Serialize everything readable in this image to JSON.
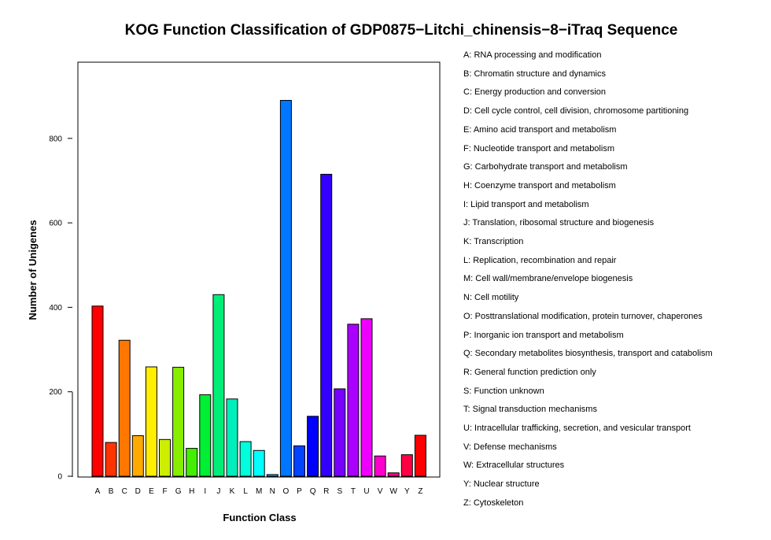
{
  "chart_data": {
    "type": "bar",
    "title": "KOG Function Classification of GDP0875−Litchi_chinensis−8−iTraq Sequence",
    "xlabel": "Function Class",
    "ylabel": "Number of Unigenes",
    "ylim": [
      0,
      900
    ],
    "yticks": [
      "0",
      "200",
      "400",
      "600",
      "800"
    ],
    "categories": [
      "A",
      "B",
      "C",
      "D",
      "E",
      "F",
      "G",
      "H",
      "I",
      "J",
      "K",
      "L",
      "M",
      "N",
      "O",
      "P",
      "Q",
      "R",
      "S",
      "T",
      "U",
      "V",
      "W",
      "Y",
      "Z"
    ],
    "values": [
      403,
      80,
      322,
      96,
      259,
      87,
      258,
      66,
      193,
      430,
      183,
      82,
      61,
      4,
      890,
      72,
      142,
      715,
      207,
      360,
      373,
      48,
      8,
      51,
      97
    ],
    "colors": [
      "#ff0000",
      "#ff3300",
      "#ff7700",
      "#ffaa00",
      "#ffee00",
      "#ccee00",
      "#88ee00",
      "#44ee00",
      "#00ee33",
      "#00ee77",
      "#00eebb",
      "#00ffdd",
      "#00ffff",
      "#00bbff",
      "#0077ff",
      "#0044ff",
      "#0000ff",
      "#3300ff",
      "#7700ff",
      "#aa00ff",
      "#ee00ff",
      "#ff00cc",
      "#ff0088",
      "#ff0044",
      "#ff0000"
    ],
    "grid": false,
    "legend_position": "right",
    "legend": [
      "A: RNA processing and modification",
      "B: Chromatin structure and dynamics",
      "C: Energy production and conversion",
      "D: Cell cycle control, cell division, chromosome partitioning",
      "E: Amino acid transport and metabolism",
      "F: Nucleotide transport and metabolism",
      "G: Carbohydrate transport and metabolism",
      "H: Coenzyme transport and metabolism",
      "I: Lipid transport and metabolism",
      "J: Translation, ribosomal structure and biogenesis",
      "K: Transcription",
      "L: Replication, recombination and repair",
      "M: Cell wall/membrane/envelope biogenesis",
      "N: Cell motility",
      "O: Posttranslational modification, protein turnover, chaperones",
      "P: Inorganic ion transport and metabolism",
      "Q: Secondary metabolites biosynthesis, transport and catabolism",
      "R: General function prediction only",
      "S: Function unknown",
      "T: Signal transduction mechanisms",
      "U: Intracellular trafficking, secretion, and vesicular transport",
      "V: Defense mechanisms",
      "W: Extracellular structures",
      "Y: Nuclear structure",
      "Z: Cytoskeleton"
    ]
  }
}
